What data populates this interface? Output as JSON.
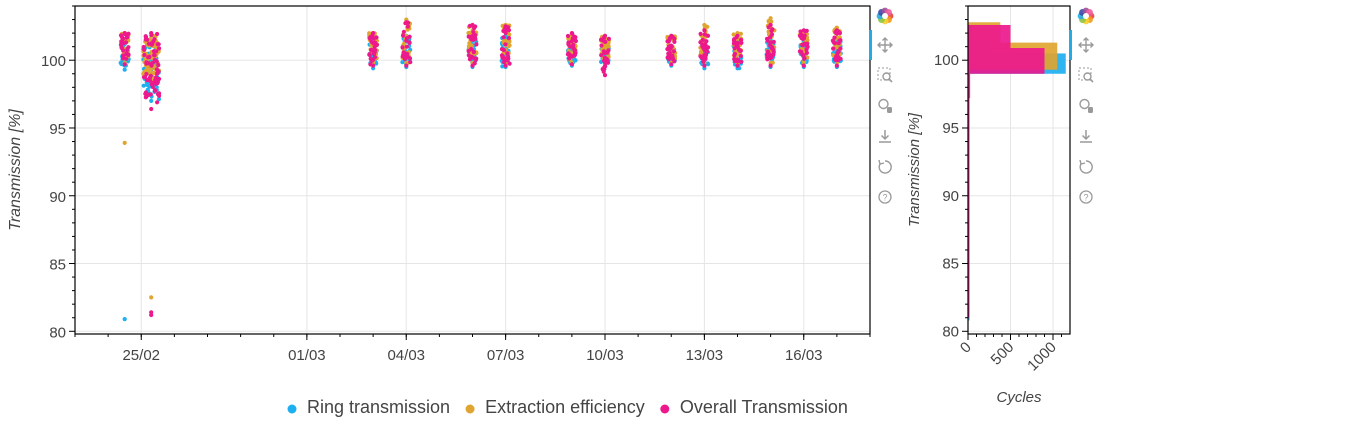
{
  "toolbar": {
    "tools": [
      {
        "name": "bokeh-logo",
        "icon": "bokeh-logo-icon"
      },
      {
        "name": "pan",
        "icon": "pan-icon"
      },
      {
        "name": "box-zoom",
        "icon": "box-zoom-icon"
      },
      {
        "name": "wheel-zoom",
        "icon": "wheel-zoom-icon"
      },
      {
        "name": "save",
        "icon": "save-icon"
      },
      {
        "name": "reset",
        "icon": "reset-icon"
      },
      {
        "name": "help",
        "icon": "help-icon"
      }
    ]
  },
  "chart_data": [
    {
      "type": "scatter",
      "title": "",
      "xlabel": "",
      "ylabel": "Transmission [%]",
      "xlim": [
        "2024-02-23",
        "2024-03-18"
      ],
      "ylim": [
        79.8,
        104
      ],
      "x_ticks": [
        "25/02",
        "01/03",
        "04/03",
        "07/03",
        "10/03",
        "13/03",
        "16/03"
      ],
      "y_ticks": [
        80,
        85,
        90,
        95,
        100
      ],
      "grid": true,
      "legend_position": "bottom",
      "series": [
        {
          "name": "Ring transmission",
          "color": "#1eaff0",
          "clusters": [
            {
              "date": "2024-02-24.5",
              "min": 99.3,
              "max": 101.2
            },
            {
              "date": "2024-02-25.3",
              "min": 97.0,
              "max": 101.2
            },
            {
              "date": "2024-03-03.0",
              "min": 99.4,
              "max": 101.5
            },
            {
              "date": "2024-03-04.0",
              "min": 99.5,
              "max": 101.8
            },
            {
              "date": "2024-03-06.0",
              "min": 99.5,
              "max": 101.8
            },
            {
              "date": "2024-03-07.0",
              "min": 99.5,
              "max": 101.8
            },
            {
              "date": "2024-03-09.0",
              "min": 99.6,
              "max": 101.0
            },
            {
              "date": "2024-03-10.0",
              "min": 99.6,
              "max": 101.2
            },
            {
              "date": "2024-03-12.0",
              "min": 99.6,
              "max": 101.0
            },
            {
              "date": "2024-03-13.0",
              "min": 99.4,
              "max": 101.4
            },
            {
              "date": "2024-03-14.0",
              "min": 99.4,
              "max": 101.4
            },
            {
              "date": "2024-03-15.0",
              "min": 99.5,
              "max": 101.5
            },
            {
              "date": "2024-03-16.0",
              "min": 99.5,
              "max": 101.4
            },
            {
              "date": "2024-03-17.0",
              "min": 99.5,
              "max": 101.4
            }
          ],
          "outliers": [
            {
              "date": "2024-02-24.5",
              "y": 80.9
            }
          ]
        },
        {
          "name": "Extraction efficiency",
          "color": "#dfa530",
          "clusters": [
            {
              "date": "2024-02-24.5",
              "min": 99.8,
              "max": 102.0
            },
            {
              "date": "2024-02-25.3",
              "min": 98.5,
              "max": 101.8
            },
            {
              "date": "2024-03-03.0",
              "min": 99.8,
              "max": 102.0
            },
            {
              "date": "2024-03-04.0",
              "min": 99.8,
              "max": 103.0
            },
            {
              "date": "2024-03-06.0",
              "min": 99.8,
              "max": 102.5
            },
            {
              "date": "2024-03-07.0",
              "min": 99.8,
              "max": 102.6
            },
            {
              "date": "2024-03-09.0",
              "min": 99.8,
              "max": 101.8
            },
            {
              "date": "2024-03-10.0",
              "min": 99.8,
              "max": 101.8
            },
            {
              "date": "2024-03-12.0",
              "min": 99.8,
              "max": 101.8
            },
            {
              "date": "2024-03-13.0",
              "min": 99.8,
              "max": 102.6
            },
            {
              "date": "2024-03-14.0",
              "min": 99.8,
              "max": 102.0
            },
            {
              "date": "2024-03-15.0",
              "min": 99.8,
              "max": 103.1
            },
            {
              "date": "2024-03-16.0",
              "min": 99.8,
              "max": 102.0
            },
            {
              "date": "2024-03-17.0",
              "min": 99.8,
              "max": 102.4
            }
          ],
          "outliers": [
            {
              "date": "2024-02-24.5",
              "y": 93.9
            },
            {
              "date": "2024-02-25.3",
              "y": 82.5
            }
          ]
        },
        {
          "name": "Overall Transmission",
          "color": "#ec188c",
          "clusters": [
            {
              "date": "2024-02-24.5",
              "min": 99.7,
              "max": 102.0
            },
            {
              "date": "2024-02-25.3",
              "min": 96.4,
              "max": 102.0
            },
            {
              "date": "2024-03-03.0",
              "min": 99.6,
              "max": 102.0
            },
            {
              "date": "2024-03-04.0",
              "min": 99.6,
              "max": 102.8
            },
            {
              "date": "2024-03-06.0",
              "min": 99.6,
              "max": 102.6
            },
            {
              "date": "2024-03-07.0",
              "min": 99.6,
              "max": 102.5
            },
            {
              "date": "2024-03-09.0",
              "min": 99.7,
              "max": 102.0
            },
            {
              "date": "2024-03-10.0",
              "min": 98.9,
              "max": 101.8
            },
            {
              "date": "2024-03-12.0",
              "min": 99.7,
              "max": 101.8
            },
            {
              "date": "2024-03-13.0",
              "min": 99.6,
              "max": 102.2
            },
            {
              "date": "2024-03-14.0",
              "min": 99.6,
              "max": 101.8
            },
            {
              "date": "2024-03-15.0",
              "min": 99.6,
              "max": 102.6
            },
            {
              "date": "2024-03-16.0",
              "min": 99.6,
              "max": 102.2
            },
            {
              "date": "2024-03-17.0",
              "min": 99.6,
              "max": 102.2
            }
          ],
          "outliers": [
            {
              "date": "2024-02-25.3",
              "y": 81.4
            },
            {
              "date": "2024-02-25.3",
              "y": 81.2
            }
          ]
        }
      ]
    },
    {
      "type": "bar",
      "orientation": "horizontal",
      "title": "",
      "xlabel": "Cycles",
      "ylabel": "Transmission [%]",
      "xlim": [
        0,
        1200
      ],
      "ylim": [
        79.8,
        104
      ],
      "x_ticks": [
        "0",
        "500",
        "1000"
      ],
      "y_ticks": [
        80,
        85,
        90,
        95,
        100
      ],
      "grid": true,
      "series": [
        {
          "name": "Ring transmission",
          "color": "#1eaff0",
          "bins": [
            {
              "from": 99.0,
              "to": 100.5,
              "count": 1150
            },
            {
              "from": 100.5,
              "to": 101.5,
              "count": 250
            },
            {
              "from": 101.5,
              "to": 102.5,
              "count": 40
            },
            {
              "from": 97.0,
              "to": 99.0,
              "count": 12
            },
            {
              "from": 80.8,
              "to": 97.0,
              "count": 3
            }
          ]
        },
        {
          "name": "Extraction efficiency",
          "color": "#dfa530",
          "bins": [
            {
              "from": 99.3,
              "to": 101.3,
              "count": 1050
            },
            {
              "from": 101.3,
              "to": 102.8,
              "count": 380
            },
            {
              "from": 97.5,
              "to": 99.3,
              "count": 12
            },
            {
              "from": 82.0,
              "to": 97.5,
              "count": 3
            }
          ]
        },
        {
          "name": "Overall Transmission",
          "color": "#ec188c",
          "bins": [
            {
              "from": 99.0,
              "to": 100.9,
              "count": 900
            },
            {
              "from": 100.9,
              "to": 102.6,
              "count": 500
            },
            {
              "from": 97.2,
              "to": 99.0,
              "count": 25
            },
            {
              "from": 81.0,
              "to": 97.2,
              "count": 3
            }
          ]
        }
      ]
    }
  ]
}
